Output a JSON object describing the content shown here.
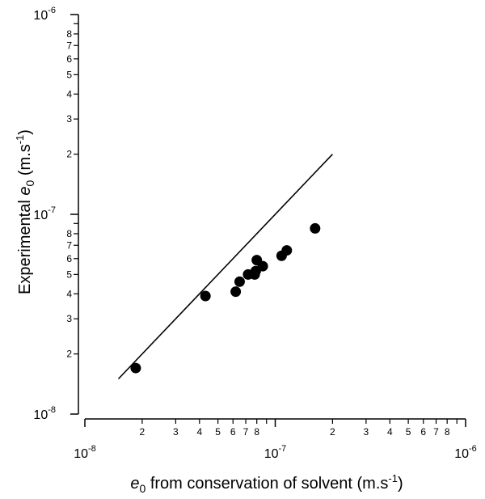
{
  "chart_data": {
    "type": "scatter",
    "xscale": "log",
    "yscale": "log",
    "xlim": [
      1e-08,
      1e-06
    ],
    "ylim": [
      1e-08,
      1e-06
    ],
    "xlabel": {
      "symbol": "e",
      "subscript": "0",
      "text": " from conservation of solvent (m.s",
      "superscript": "-1",
      "close": ")"
    },
    "ylabel": {
      "prefix": "Experimental ",
      "symbol": "e",
      "subscript": "0",
      "text": " (m.s",
      "superscript": "-1",
      "close": ")"
    },
    "x_major_ticks": [
      {
        "value": 1e-08,
        "base": "10",
        "exp": "-8"
      },
      {
        "value": 1e-07,
        "base": "10",
        "exp": "-7"
      },
      {
        "value": 1e-06,
        "base": "10",
        "exp": "-6"
      }
    ],
    "y_major_ticks": [
      {
        "value": 1e-08,
        "base": "10",
        "exp": "-8"
      },
      {
        "value": 1e-07,
        "base": "10",
        "exp": "-7"
      },
      {
        "value": 1e-06,
        "base": "10",
        "exp": "-6"
      }
    ],
    "minor_tick_labels": [
      "2",
      "3",
      "4",
      "5",
      "6",
      "7",
      "8"
    ],
    "reference_line": {
      "x": [
        1.5e-08,
        2e-07
      ],
      "y": [
        1.5e-08,
        2e-07
      ]
    },
    "points": [
      {
        "x": 1.85e-08,
        "y": 1.7e-08
      },
      {
        "x": 4.3e-08,
        "y": 3.9e-08
      },
      {
        "x": 6.2e-08,
        "y": 4.1e-08
      },
      {
        "x": 6.5e-08,
        "y": 4.6e-08
      },
      {
        "x": 7.2e-08,
        "y": 5e-08
      },
      {
        "x": 7.8e-08,
        "y": 5e-08
      },
      {
        "x": 7.9e-08,
        "y": 5.2e-08
      },
      {
        "x": 8e-08,
        "y": 5.9e-08
      },
      {
        "x": 8.6e-08,
        "y": 5.5e-08
      },
      {
        "x": 1.08e-07,
        "y": 6.2e-08
      },
      {
        "x": 1.15e-07,
        "y": 6.6e-08
      },
      {
        "x": 1.62e-07,
        "y": 8.5e-08
      }
    ],
    "grid": false,
    "legend": "none"
  }
}
